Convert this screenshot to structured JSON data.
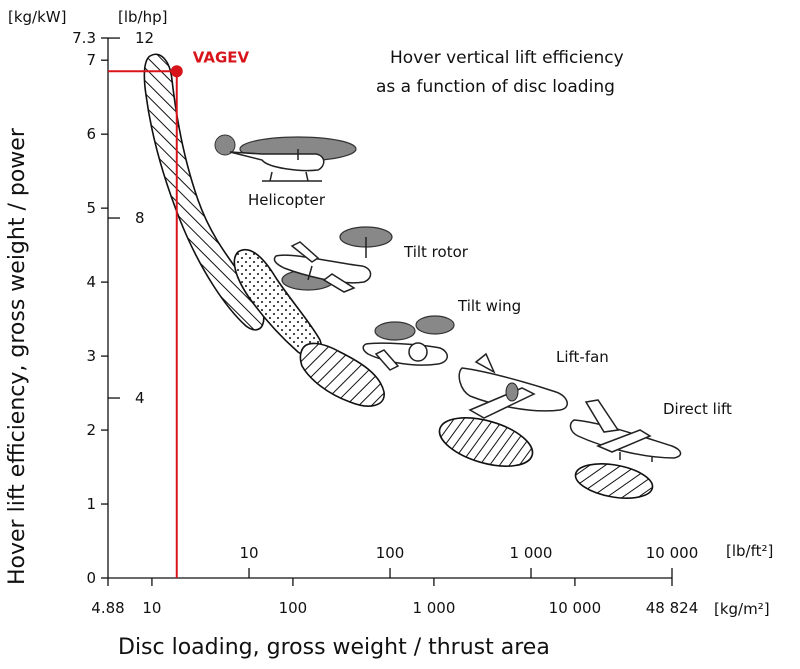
{
  "chart_data": {
    "type": "scatter",
    "title": "Hover vertical lift efficiency\nas a function of disc loading",
    "xlabel": "Disc loading, gross weight / thrust area",
    "ylabel": "Hover lift efficiency, gross weight / power",
    "x_scale": "log",
    "x_unit": "[kg/m²]",
    "x_range": [
      4.88,
      48824
    ],
    "x_ticks": [
      {
        "value": 4.88,
        "label": "4.88"
      },
      {
        "value": 10,
        "label": "10"
      },
      {
        "value": 100,
        "label": "100"
      },
      {
        "value": 1000,
        "label": "1 000"
      },
      {
        "value": 10000,
        "label": "10 000"
      },
      {
        "value": 48824,
        "label": "48 824"
      }
    ],
    "x2_unit": "[lb/ft²]",
    "x2_ticks": [
      {
        "value": 10,
        "label": "10"
      },
      {
        "value": 100,
        "label": "100"
      },
      {
        "value": 1000,
        "label": "1 000"
      },
      {
        "value": 10000,
        "label": "10 000"
      }
    ],
    "y_unit": "[kg/kW]",
    "y_range": [
      0,
      7.3
    ],
    "y_ticks": [
      {
        "value": 0,
        "label": "0"
      },
      {
        "value": 1,
        "label": "1"
      },
      {
        "value": 2,
        "label": "2"
      },
      {
        "value": 3,
        "label": "3"
      },
      {
        "value": 4,
        "label": "4"
      },
      {
        "value": 5,
        "label": "5"
      },
      {
        "value": 6,
        "label": "6"
      },
      {
        "value": 7,
        "label": "7"
      },
      {
        "value": 7.3,
        "label": "7.3"
      }
    ],
    "y2_unit": "[lb/hp]",
    "y2_ticks": [
      {
        "value": 4,
        "label": "4"
      },
      {
        "value": 8,
        "label": "8"
      },
      {
        "value": 12,
        "label": "12"
      }
    ],
    "regions": [
      {
        "name": "Helicopter",
        "pattern": "hatch-back",
        "points": [
          [
            10,
            7.05
          ],
          [
            12,
            5.7
          ],
          [
            20,
            5.0
          ],
          [
            40,
            4.05
          ],
          [
            18,
            5.6
          ]
        ]
      },
      {
        "name": "Tilt rotor",
        "pattern": "dots",
        "points": [
          [
            45,
            4.35
          ],
          [
            60,
            3.9
          ],
          [
            110,
            3.1
          ],
          [
            55,
            3.6
          ]
        ]
      },
      {
        "name": "Tilt wing",
        "pattern": "hatch-forward",
        "points": [
          [
            120,
            3.05
          ],
          [
            300,
            2.6
          ],
          [
            600,
            2.3
          ]
        ]
      },
      {
        "name": "Lift-fan",
        "pattern": "hatch-vertical",
        "points": [
          [
            1000,
            2.0
          ],
          [
            2000,
            1.8
          ],
          [
            3000,
            1.55
          ]
        ]
      },
      {
        "name": "Direct lift",
        "pattern": "hatch-forward",
        "points": [
          [
            10000,
            1.35
          ],
          [
            15000,
            1.25
          ],
          [
            22000,
            1.0
          ]
        ]
      }
    ],
    "marker": {
      "name": "VAGEV",
      "x": 15,
      "y": 6.85,
      "color": "#d8141b"
    }
  }
}
